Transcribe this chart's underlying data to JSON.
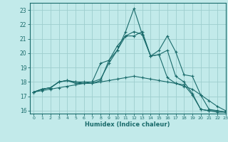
{
  "xlabel": "Humidex (Indice chaleur)",
  "xlim": [
    -0.5,
    23
  ],
  "ylim": [
    15.8,
    23.5
  ],
  "yticks": [
    16,
    17,
    18,
    19,
    20,
    21,
    22,
    23
  ],
  "xticks": [
    0,
    1,
    2,
    3,
    4,
    5,
    6,
    7,
    8,
    9,
    10,
    11,
    12,
    13,
    14,
    15,
    16,
    17,
    18,
    19,
    20,
    21,
    22,
    23
  ],
  "bg_color": "#c2eaea",
  "grid_color": "#9ecece",
  "line_color": "#1a6b6b",
  "series": [
    [
      17.3,
      17.5,
      17.6,
      18.0,
      18.1,
      18.0,
      17.9,
      18.0,
      18.2,
      19.3,
      20.2,
      21.2,
      21.5,
      21.3,
      19.8,
      19.9,
      18.3,
      17.9,
      17.8,
      17.1,
      16.1,
      16.0,
      15.9,
      15.9
    ],
    [
      17.3,
      17.5,
      17.6,
      18.0,
      18.1,
      17.9,
      17.9,
      17.9,
      18.1,
      19.5,
      20.2,
      21.5,
      23.1,
      21.3,
      19.8,
      20.2,
      21.2,
      20.1,
      18.5,
      18.4,
      17.1,
      16.1,
      16.0,
      15.9
    ],
    [
      17.3,
      17.5,
      17.6,
      18.0,
      18.1,
      18.0,
      18.0,
      18.0,
      19.3,
      19.5,
      20.5,
      21.2,
      21.2,
      21.5,
      19.8,
      19.9,
      20.2,
      18.4,
      18.0,
      17.2,
      16.1,
      16.0,
      16.0,
      15.9
    ],
    [
      17.3,
      17.4,
      17.5,
      17.6,
      17.7,
      17.8,
      17.9,
      17.9,
      18.0,
      18.1,
      18.2,
      18.3,
      18.4,
      18.3,
      18.2,
      18.1,
      18.0,
      17.9,
      17.7,
      17.5,
      17.1,
      16.7,
      16.3,
      16.0
    ]
  ]
}
